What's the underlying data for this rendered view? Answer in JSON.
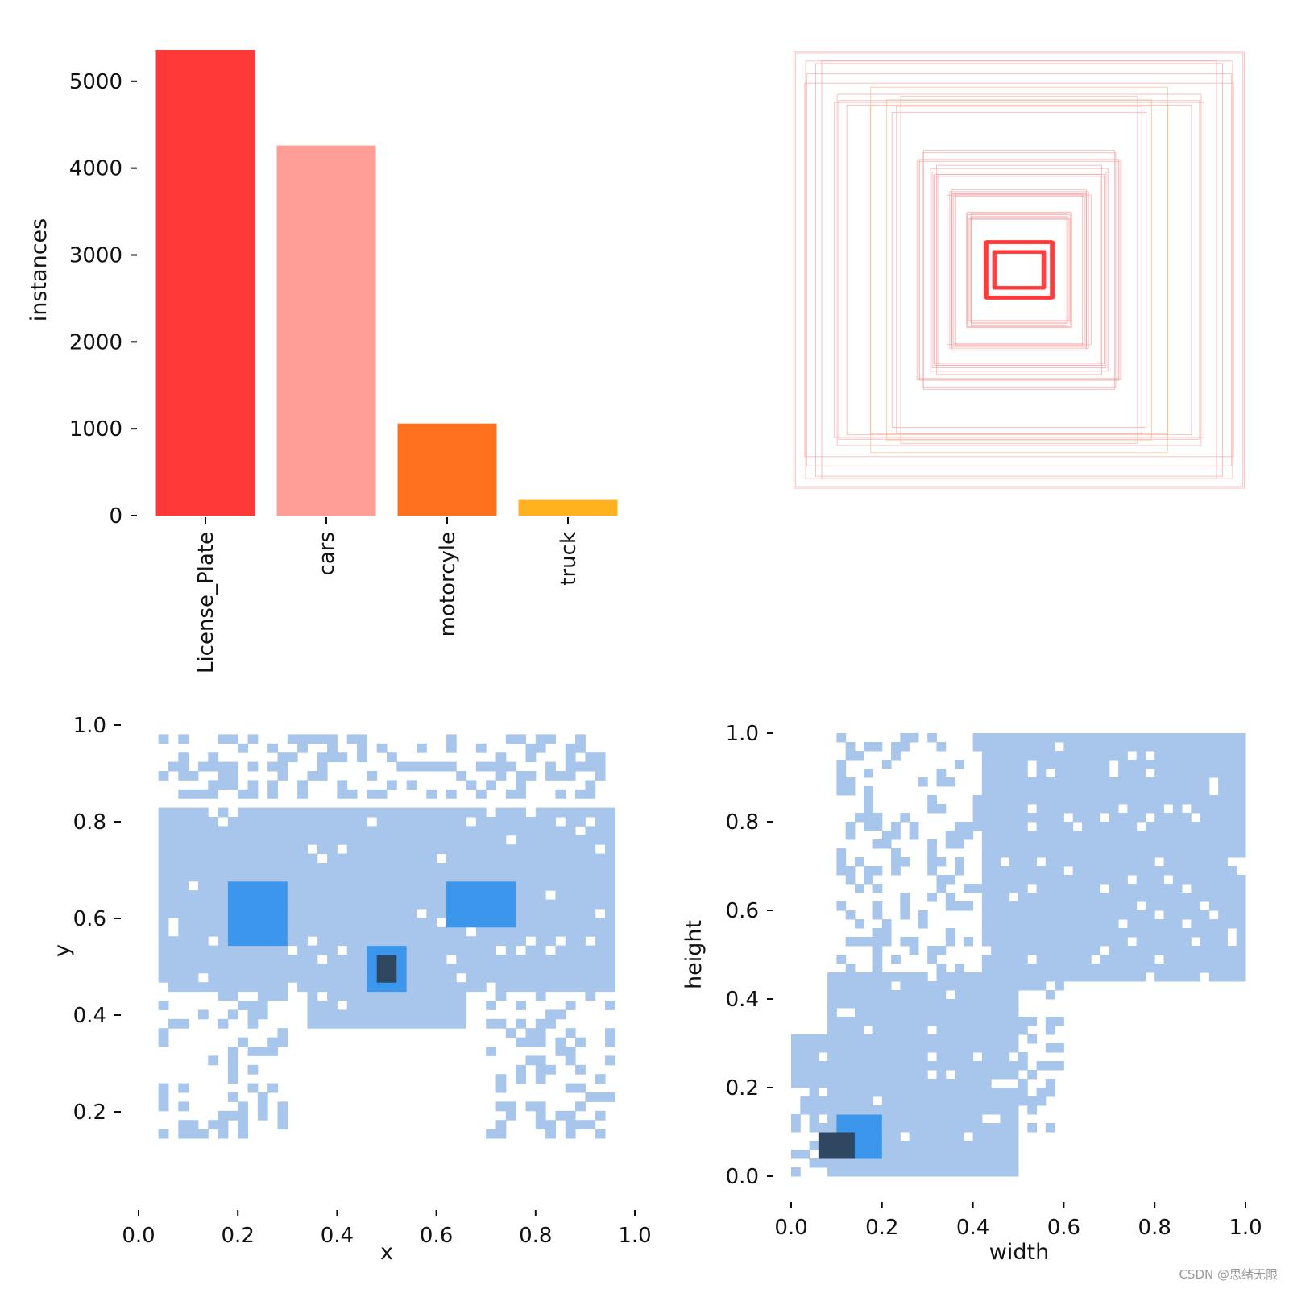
{
  "watermark": "CSDN @思绪无限",
  "colors": {
    "bar_palette": [
      "#ff3838",
      "#ff9d97",
      "#ff701f",
      "#ffb21d"
    ],
    "box_outline": "#f2a0a0",
    "box_outline_dense": "#ff3838",
    "box_outline_accent": "#f5b87a",
    "hist_light": "#a8c6ec",
    "hist_mid": "#3c97ec",
    "hist_dark": "#2f4760"
  },
  "chart_data": [
    {
      "type": "bar",
      "title": "",
      "ylabel": "instances",
      "xlabel": "",
      "categories": [
        "License_Plate",
        "cars",
        "motorcyle",
        "truck"
      ],
      "values": [
        5360,
        4260,
        1060,
        180
      ],
      "ylim": [
        0,
        5360
      ],
      "yticks": [
        0,
        1000,
        2000,
        3000,
        4000,
        5000
      ],
      "ytick_labels": [
        "0",
        "1000",
        "2000",
        "3000",
        "4000",
        "5000"
      ]
    },
    {
      "type": "box-overlay",
      "title": "",
      "description_none": true,
      "boxes": [
        {
          "w": 1.0,
          "h": 0.96,
          "n": 3,
          "color": "outline"
        },
        {
          "w": 0.93,
          "h": 0.88,
          "n": 4,
          "color": "outline"
        },
        {
          "w": 0.8,
          "h": 0.78,
          "n": 4,
          "color": "outline"
        },
        {
          "w": 0.62,
          "h": 0.76,
          "n": 3,
          "color": "accent"
        },
        {
          "w": 0.55,
          "h": 0.72,
          "n": 3,
          "color": "outline"
        },
        {
          "w": 0.45,
          "h": 0.5,
          "n": 5,
          "color": "outline"
        },
        {
          "w": 0.38,
          "h": 0.44,
          "n": 6,
          "color": "outline"
        },
        {
          "w": 0.3,
          "h": 0.34,
          "n": 7,
          "color": "outline"
        },
        {
          "w": 0.22,
          "h": 0.24,
          "n": 8,
          "color": "outline"
        },
        {
          "w": 0.15,
          "h": 0.12,
          "n": 8,
          "color": "dense"
        },
        {
          "w": 0.11,
          "h": 0.08,
          "n": 6,
          "color": "dense"
        }
      ]
    },
    {
      "type": "heatmap",
      "title": "",
      "xlabel": "x",
      "ylabel": "y",
      "xlim": [
        0.0,
        1.0
      ],
      "ylim": [
        0.05,
        1.0
      ],
      "xticks": [
        0.0,
        0.2,
        0.4,
        0.6,
        0.8,
        1.0
      ],
      "xtick_labels": [
        "0.0",
        "0.2",
        "0.4",
        "0.6",
        "0.8",
        "1.0"
      ],
      "yticks": [
        0.2,
        0.4,
        0.6,
        0.8,
        1.0
      ],
      "ytick_labels": [
        "0.2",
        "0.4",
        "0.6",
        "0.8",
        "1.0"
      ],
      "bins": 50,
      "regions": [
        {
          "x": [
            0.05,
            0.95
          ],
          "y": [
            0.45,
            0.82
          ],
          "density": "light"
        },
        {
          "x": [
            0.35,
            0.65
          ],
          "y": [
            0.38,
            0.52
          ],
          "density": "light"
        },
        {
          "x": [
            0.05,
            0.3
          ],
          "y": [
            0.15,
            0.45
          ],
          "density": "sparse"
        },
        {
          "x": [
            0.7,
            0.95
          ],
          "y": [
            0.15,
            0.45
          ],
          "density": "sparse"
        },
        {
          "x": [
            0.05,
            0.95
          ],
          "y": [
            0.85,
            0.98
          ],
          "density": "sparse"
        },
        {
          "x": [
            0.18,
            0.3
          ],
          "y": [
            0.55,
            0.68
          ],
          "density": "mid"
        },
        {
          "x": [
            0.62,
            0.75
          ],
          "y": [
            0.58,
            0.68
          ],
          "density": "mid"
        },
        {
          "x": [
            0.46,
            0.53
          ],
          "y": [
            0.45,
            0.55
          ],
          "density": "mid"
        },
        {
          "x": [
            0.48,
            0.52
          ],
          "y": [
            0.47,
            0.53
          ],
          "density": "dark"
        }
      ]
    },
    {
      "type": "heatmap",
      "title": "",
      "xlabel": "width",
      "ylabel": "height",
      "xlim": [
        0.0,
        1.0
      ],
      "ylim": [
        0.0,
        1.0
      ],
      "xticks": [
        0.0,
        0.2,
        0.4,
        0.6,
        0.8,
        1.0
      ],
      "xtick_labels": [
        "0.0",
        "0.2",
        "0.4",
        "0.6",
        "0.8",
        "1.0"
      ],
      "yticks": [
        0.0,
        0.2,
        0.4,
        0.6,
        0.8,
        1.0
      ],
      "ytick_labels": [
        "0.0",
        "0.2",
        "0.4",
        "0.6",
        "0.8",
        "1.0"
      ],
      "bins": 50,
      "regions": [
        {
          "x": [
            0.42,
            1.0
          ],
          "y": [
            0.45,
            1.0
          ],
          "density": "light"
        },
        {
          "x": [
            0.08,
            0.5
          ],
          "y": [
            0.0,
            0.45
          ],
          "density": "light"
        },
        {
          "x": [
            0.0,
            0.1
          ],
          "y": [
            0.2,
            0.32
          ],
          "density": "light"
        },
        {
          "x": [
            0.1,
            0.5
          ],
          "y": [
            0.45,
            1.0
          ],
          "density": "sparse"
        },
        {
          "x": [
            0.5,
            0.6
          ],
          "y": [
            0.1,
            0.45
          ],
          "density": "sparse"
        },
        {
          "x": [
            0.0,
            0.1
          ],
          "y": [
            0.0,
            0.2
          ],
          "density": "sparse"
        },
        {
          "x": [
            0.1,
            0.2
          ],
          "y": [
            0.04,
            0.14
          ],
          "density": "mid"
        },
        {
          "x": [
            0.07,
            0.13
          ],
          "y": [
            0.04,
            0.09
          ],
          "density": "dark"
        }
      ]
    }
  ]
}
